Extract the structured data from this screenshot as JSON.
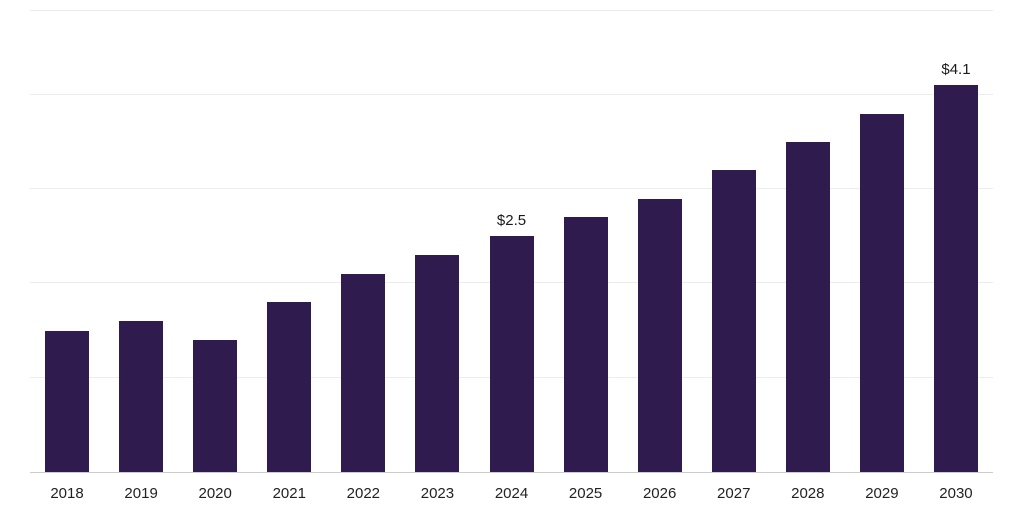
{
  "chart_data": {
    "type": "bar",
    "title": "",
    "xlabel": "",
    "ylabel": "",
    "categories": [
      "2018",
      "2019",
      "2020",
      "2021",
      "2022",
      "2023",
      "2024",
      "2025",
      "2026",
      "2027",
      "2028",
      "2029",
      "2030"
    ],
    "values": [
      1.5,
      1.6,
      1.4,
      1.8,
      2.1,
      2.3,
      2.5,
      2.7,
      2.9,
      3.2,
      3.5,
      3.8,
      4.1
    ],
    "data_labels": {
      "2024": "$2.5",
      "2030": "$4.1"
    },
    "ylim": [
      0,
      4.9
    ],
    "gridline_interval": 1.0,
    "grid": "horizontal",
    "legend": "none",
    "bar_color": "#2f1b4d",
    "gridline_color": "#ededed",
    "axis_line_color": "#cccccc",
    "value_label_color": "#1a1a1a",
    "tick_label_color": "#222222",
    "background_color": "#ffffff"
  }
}
